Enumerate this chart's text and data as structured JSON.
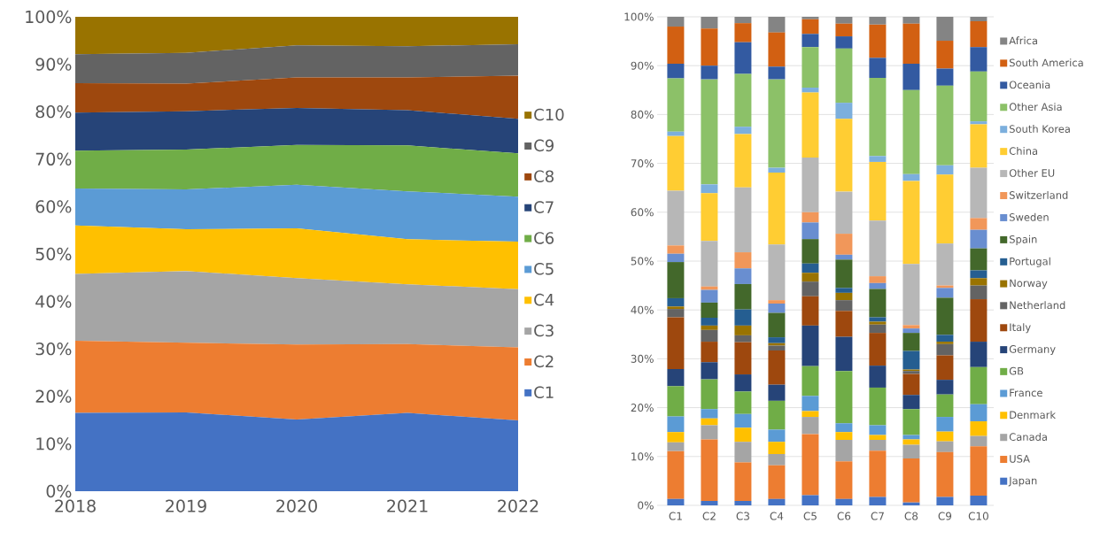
{
  "chart_data": [
    {
      "type": "area",
      "stacked": true,
      "x": [
        2018,
        2019,
        2020,
        2021,
        2022
      ],
      "xlim": [
        2018,
        2022
      ],
      "xticks": [
        2018,
        2019,
        2020,
        2021,
        2022
      ],
      "ylim": [
        0,
        100
      ],
      "yticks": [
        {
          "value": 0,
          "label": "0%"
        },
        {
          "value": 10,
          "label": "10%"
        },
        {
          "value": 20,
          "label": "20%"
        },
        {
          "value": 30,
          "label": "30%"
        },
        {
          "value": 40,
          "label": "40%"
        },
        {
          "value": 50,
          "label": "50%"
        },
        {
          "value": 60,
          "label": "60%"
        },
        {
          "value": 70,
          "label": "70%"
        },
        {
          "value": 80,
          "label": "80%"
        },
        {
          "value": 90,
          "label": "90%"
        },
        {
          "value": 100,
          "label": "100%"
        }
      ],
      "legend": "right",
      "series": [
        {
          "name": "C1",
          "color": "#4472c4",
          "values": [
            16.5,
            16.6,
            15.1,
            16.5,
            14.9
          ]
        },
        {
          "name": "C2",
          "color": "#ed7d31",
          "values": [
            15.2,
            14.7,
            15.8,
            14.5,
            15.4
          ]
        },
        {
          "name": "C3",
          "color": "#a5a5a5",
          "values": [
            14.1,
            15.1,
            14.0,
            12.6,
            12.3
          ]
        },
        {
          "name": "C4",
          "color": "#ffc000",
          "values": [
            10.2,
            8.8,
            10.5,
            9.5,
            10.0
          ]
        },
        {
          "name": "C5",
          "color": "#5b9bd5",
          "values": [
            7.8,
            8.4,
            9.2,
            10.1,
            9.5
          ]
        },
        {
          "name": "C6",
          "color": "#70ad47",
          "values": [
            8.0,
            8.4,
            8.4,
            9.7,
            9.1
          ]
        },
        {
          "name": "C7",
          "color": "#264478",
          "values": [
            8.0,
            8.1,
            7.8,
            7.4,
            7.3
          ]
        },
        {
          "name": "C8",
          "color": "#9e480e",
          "values": [
            6.2,
            5.8,
            6.4,
            6.9,
            9.1
          ]
        },
        {
          "name": "C9",
          "color": "#636363",
          "values": [
            6.1,
            6.5,
            6.8,
            6.6,
            6.6
          ]
        },
        {
          "name": "C10",
          "color": "#997300",
          "values": [
            7.9,
            7.6,
            6.0,
            6.2,
            5.8
          ]
        }
      ]
    },
    {
      "type": "bar",
      "stacked": true,
      "categories": [
        "C1",
        "C2",
        "C3",
        "C4",
        "C5",
        "C6",
        "C7",
        "C8",
        "C9",
        "C10"
      ],
      "ylim": [
        0,
        100
      ],
      "yticks": [
        {
          "value": 0,
          "label": "0%"
        },
        {
          "value": 10,
          "label": "10%"
        },
        {
          "value": 20,
          "label": "20%"
        },
        {
          "value": 30,
          "label": "30%"
        },
        {
          "value": 40,
          "label": "40%"
        },
        {
          "value": 50,
          "label": "50%"
        },
        {
          "value": 60,
          "label": "60%"
        },
        {
          "value": 70,
          "label": "70%"
        },
        {
          "value": 80,
          "label": "80%"
        },
        {
          "value": 90,
          "label": "90%"
        },
        {
          "value": 100,
          "label": "100%"
        }
      ],
      "grid": "y",
      "legend": "right",
      "series": [
        {
          "name": "Japan",
          "color": "#4472c4",
          "values": [
            1.3,
            0.9,
            0.9,
            1.3,
            2.1,
            1.3,
            1.7,
            0.6,
            1.7,
            2.0
          ]
        },
        {
          "name": "USA",
          "color": "#ed7d31",
          "values": [
            9.8,
            12.6,
            7.9,
            6.9,
            12.5,
            7.7,
            9.5,
            9.0,
            9.2,
            10.1
          ]
        },
        {
          "name": "Canada",
          "color": "#a5a5a5",
          "values": [
            1.8,
            2.9,
            4.2,
            2.3,
            3.5,
            4.4,
            2.2,
            2.8,
            2.2,
            2.1
          ]
        },
        {
          "name": "Denmark",
          "color": "#ffc000",
          "values": [
            2.1,
            1.4,
            2.9,
            2.5,
            1.2,
            1.6,
            1.0,
            1.1,
            2.0,
            3.0
          ]
        },
        {
          "name": "France",
          "color": "#5b9bd5",
          "values": [
            3.2,
            1.9,
            2.8,
            2.5,
            3.1,
            1.8,
            2.0,
            0.9,
            3.0,
            3.5
          ]
        },
        {
          "name": "GB",
          "color": "#70ad47",
          "values": [
            6.2,
            6.1,
            4.6,
            5.9,
            6.1,
            10.7,
            7.7,
            5.3,
            4.6,
            7.6
          ]
        },
        {
          "name": "Germany",
          "color": "#264478",
          "values": [
            3.5,
            3.5,
            3.5,
            3.3,
            8.3,
            7.0,
            4.5,
            2.9,
            3.0,
            5.2
          ]
        },
        {
          "name": "Italy",
          "color": "#9e480e",
          "values": [
            10.6,
            4.2,
            6.6,
            7.0,
            6.0,
            5.3,
            6.7,
            4.3,
            5.0,
            8.7
          ]
        },
        {
          "name": "Netherland",
          "color": "#636363",
          "values": [
            1.7,
            2.4,
            1.4,
            1.0,
            3.0,
            2.2,
            1.7,
            0.6,
            2.3,
            2.8
          ]
        },
        {
          "name": "Norway",
          "color": "#997300",
          "values": [
            0.5,
            0.9,
            2.0,
            0.5,
            1.8,
            1.5,
            0.6,
            0.3,
            0.5,
            1.5
          ]
        },
        {
          "name": "Portugal",
          "color": "#255e91",
          "values": [
            1.7,
            1.6,
            3.3,
            1.2,
            1.9,
            1.0,
            0.9,
            3.8,
            1.4,
            1.6
          ]
        },
        {
          "name": "Spain",
          "color": "#43682b",
          "values": [
            7.4,
            3.1,
            5.2,
            5.0,
            5.0,
            5.8,
            5.8,
            3.7,
            7.6,
            4.5
          ]
        },
        {
          "name": "Sweden",
          "color": "#698ed0",
          "values": [
            1.7,
            2.6,
            3.2,
            1.9,
            3.4,
            1.0,
            1.2,
            0.9,
            2.0,
            3.8
          ]
        },
        {
          "name": "Switzerland",
          "color": "#f1975a",
          "values": [
            1.7,
            0.7,
            3.3,
            0.7,
            2.1,
            4.3,
            1.4,
            0.7,
            0.5,
            2.4
          ]
        },
        {
          "name": "Other EU",
          "color": "#b7b7b7",
          "values": [
            11.2,
            9.3,
            13.3,
            11.4,
            11.2,
            8.6,
            11.4,
            12.5,
            8.6,
            10.3
          ]
        },
        {
          "name": "China",
          "color": "#ffcd33",
          "values": [
            11.2,
            9.8,
            10.9,
            14.7,
            13.3,
            14.9,
            12.0,
            17.0,
            14.1,
            8.9
          ]
        },
        {
          "name": "South Korea",
          "color": "#7cafdd",
          "values": [
            0.9,
            1.8,
            1.5,
            1.0,
            1.0,
            3.3,
            1.2,
            1.4,
            1.9,
            0.6
          ]
        },
        {
          "name": "Other Asia",
          "color": "#8cc168",
          "values": [
            10.9,
            21.5,
            10.8,
            18.1,
            8.3,
            11.1,
            16.0,
            17.2,
            16.3,
            10.2
          ]
        },
        {
          "name": "Oceania",
          "color": "#335aa1",
          "values": [
            3.0,
            2.8,
            6.5,
            2.6,
            2.7,
            2.5,
            4.1,
            5.4,
            3.5,
            5.0
          ]
        },
        {
          "name": "South America",
          "color": "#d26012",
          "values": [
            7.6,
            7.6,
            3.9,
            7.0,
            3.0,
            2.6,
            6.8,
            8.2,
            5.7,
            5.3
          ]
        },
        {
          "name": "Africa",
          "color": "#848484",
          "values": [
            2.0,
            2.4,
            1.3,
            3.2,
            0.5,
            1.4,
            1.6,
            1.4,
            4.9,
            0.9
          ]
        }
      ]
    }
  ]
}
